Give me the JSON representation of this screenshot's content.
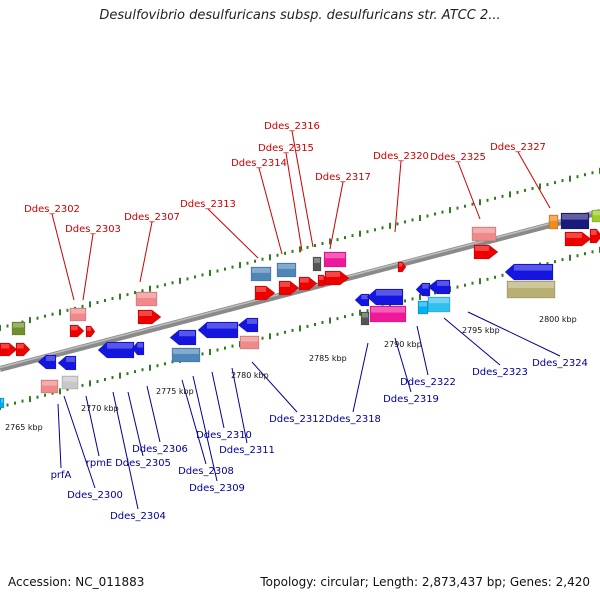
{
  "title": "Desulfovibrio desulfuricans subsp. desulfuricans str. ATCC 2...",
  "footer": {
    "accession": "Accession: NC_011883",
    "summary": "Topology: circular; Length: 2,873,437 bp; Genes: 2,420"
  },
  "colors": {
    "forward_label": "#cc0000",
    "reverse_label": "#00009a",
    "backbone": "#808080",
    "tick_dots": "#2e7d1e"
  },
  "axis": {
    "ticks": [
      "2765 kbp",
      "2770 kbp",
      "2775 kbp",
      "2780 kbp",
      "2785 kbp",
      "2790 kbp",
      "2795 kbp",
      "2800 kbp"
    ]
  },
  "genes_forward": [
    "Ddes_2302",
    "Ddes_2303",
    "Ddes_2307",
    "Ddes_2313",
    "Ddes_2314",
    "Ddes_2315",
    "Ddes_2316",
    "Ddes_2317",
    "Ddes_2320",
    "Ddes_2325",
    "Ddes_2327"
  ],
  "genes_reverse": [
    "prfA",
    "rpmE",
    "Ddes_2300",
    "Ddes_2304",
    "Ddes_2305",
    "Ddes_2306",
    "Ddes_2308",
    "Ddes_2309",
    "Ddes_2310",
    "Ddes_2311",
    "Ddes_2312",
    "Ddes_2318",
    "Ddes_2319",
    "Ddes_2322",
    "Ddes_2323",
    "Ddes_2324"
  ]
}
